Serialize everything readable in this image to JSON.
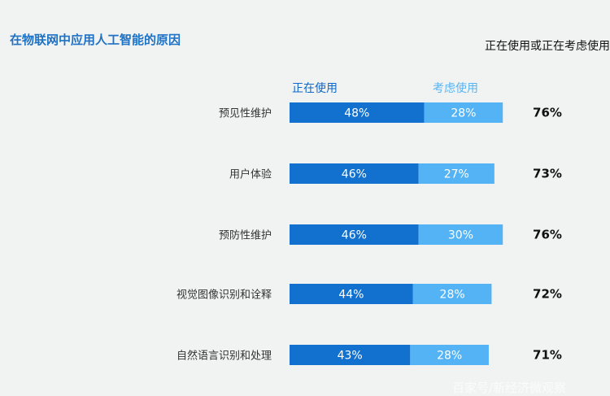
{
  "title": "在物联网中应用人工智能的原因",
  "total_header": "正在使用或正在考虑使用",
  "watermark": "百家号/新经济微观察",
  "colors": {
    "using": "#1271cf",
    "considering": "#53b3f5",
    "title": "#1f72c4"
  },
  "chart_data": {
    "type": "bar",
    "orientation": "horizontal",
    "stacked": true,
    "title": "在物联网中应用人工智能的原因",
    "categories": [
      "预见性维护",
      "用户体验",
      "预防性维护",
      "视觉图像识别和诠释",
      "自然语言识别和处理"
    ],
    "series": [
      {
        "name": "正在使用",
        "values": [
          48,
          46,
          46,
          44,
          43
        ]
      },
      {
        "name": "考虑使用",
        "values": [
          28,
          27,
          30,
          28,
          28
        ]
      }
    ],
    "totals_label": "正在使用或正在考虑使用",
    "totals": [
      76,
      73,
      76,
      72,
      71
    ],
    "unit": "%",
    "legend": "top"
  }
}
